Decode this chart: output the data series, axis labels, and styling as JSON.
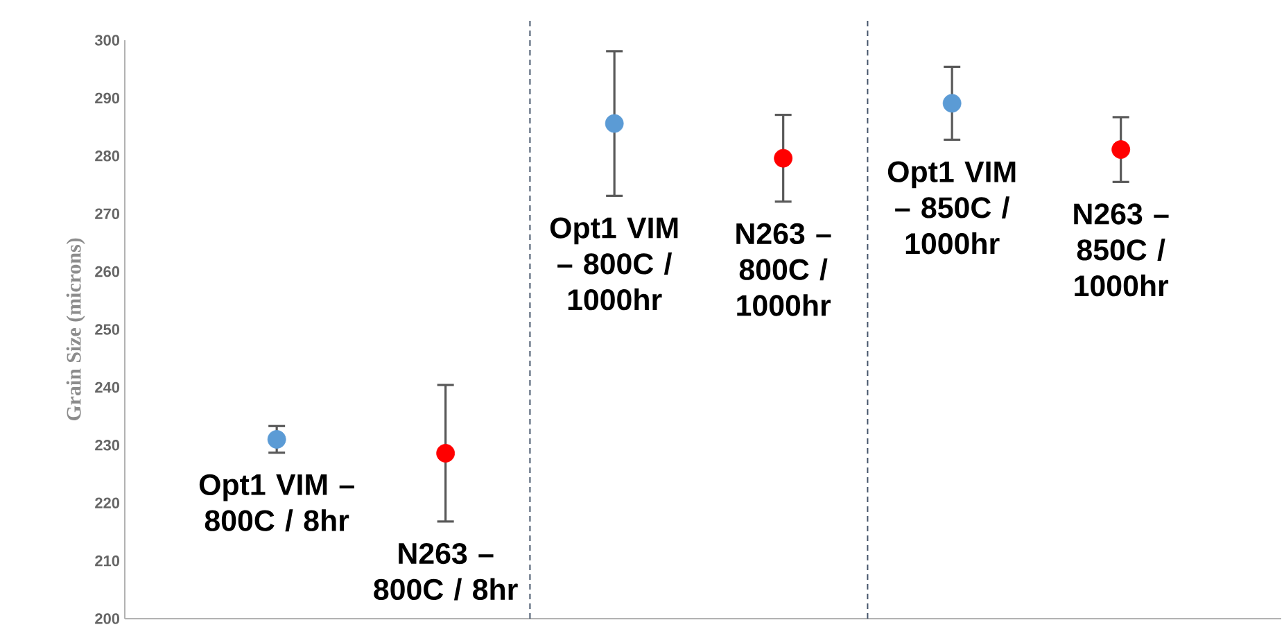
{
  "chart_data": {
    "type": "scatter",
    "ylabel": "Grain Size (microns)",
    "categories": [
      "Opt1 VIM – 800C / 8hr",
      "N263 – 800C / 8hr",
      "Opt1 VIM – 800C / 1000hr",
      "N263 – 800C / 1000hr",
      "Opt1 VIM – 850C / 1000hr",
      "N263 – 850C / 1000hr"
    ],
    "values": [
      231.0,
      228.6,
      285.6,
      279.6,
      289.1,
      281.1
    ],
    "errors": [
      2.3,
      11.8,
      12.5,
      7.5,
      6.3,
      5.6
    ],
    "colors": [
      "#5b9bd5",
      "#ff0000",
      "#5b9bd5",
      "#ff0000",
      "#5b9bd5",
      "#ff0000"
    ],
    "ylim": [
      200,
      300
    ],
    "yticks": [
      200,
      210,
      220,
      230,
      240,
      250,
      260,
      270,
      280,
      290,
      300
    ],
    "grid": false
  }
}
